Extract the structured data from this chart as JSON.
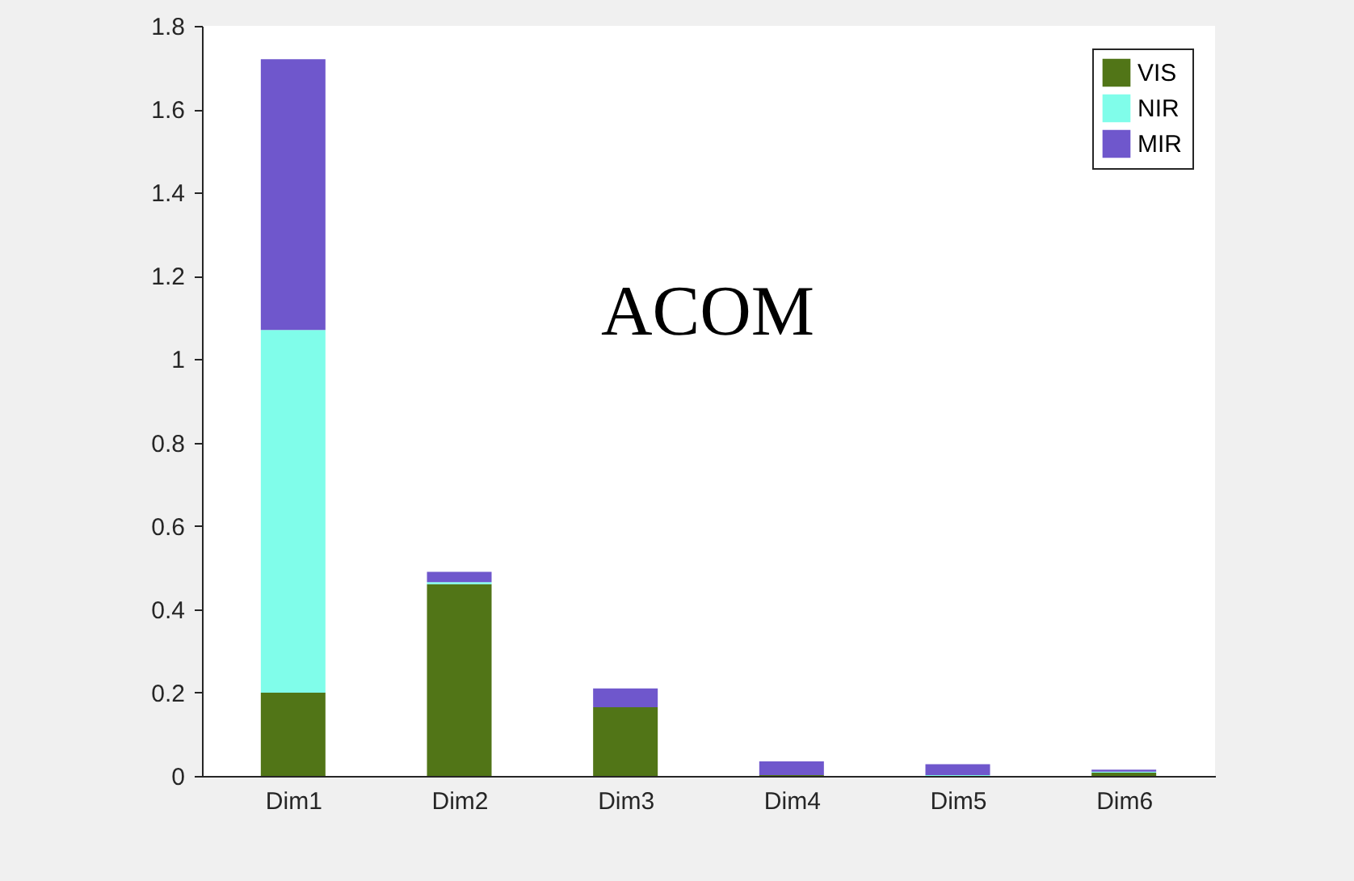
{
  "chart_data": {
    "type": "bar",
    "stacked": true,
    "categories": [
      "Dim1",
      "Dim2",
      "Dim3",
      "Dim4",
      "Dim5",
      "Dim6"
    ],
    "series": [
      {
        "name": "VIS",
        "color": "#517517",
        "values": [
          0.2,
          0.46,
          0.165,
          0.002,
          0,
          0.008
        ]
      },
      {
        "name": "NIR",
        "color": "#80fdea",
        "values": [
          0.87,
          0.005,
          0,
          0,
          0.002,
          0.002
        ]
      },
      {
        "name": "MIR",
        "color": "#6f57cc",
        "values": [
          0.65,
          0.025,
          0.045,
          0.033,
          0.026,
          0.005
        ]
      }
    ],
    "ylim": [
      0,
      1.8
    ],
    "yticks": [
      0,
      0.2,
      0.4,
      0.6,
      0.8,
      1,
      1.2,
      1.4,
      1.6,
      1.8
    ],
    "annotations": [
      "ACOM"
    ],
    "legend": "top right",
    "grid": false
  }
}
